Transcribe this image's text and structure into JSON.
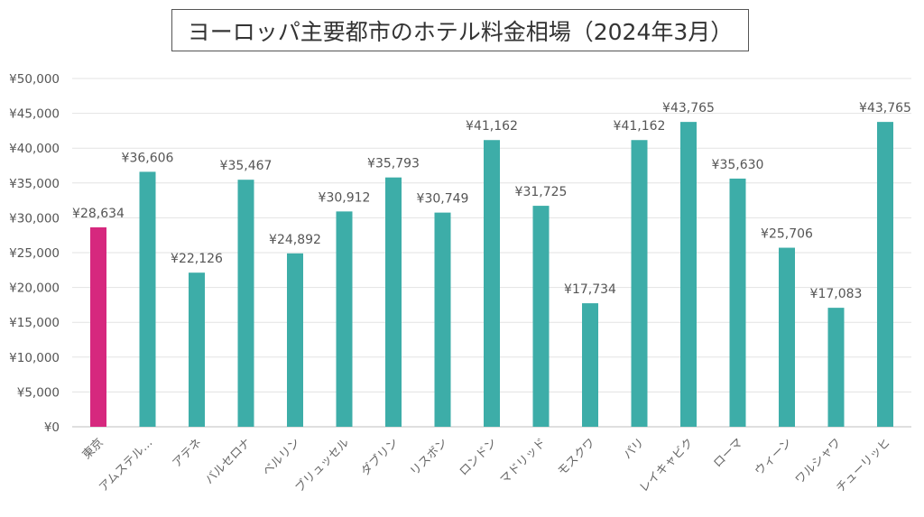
{
  "chart_data": {
    "type": "bar",
    "title": "ヨーロッパ主要都市のホテル料金相場（2024年3月）",
    "xlabel": "",
    "ylabel": "",
    "ylim": [
      0,
      50000
    ],
    "yticks": [
      "¥0",
      "¥5,000",
      "¥10,000",
      "¥15,000",
      "¥20,000",
      "¥25,000",
      "¥30,000",
      "¥35,000",
      "¥40,000",
      "¥45,000",
      "¥50,000"
    ],
    "grid": true,
    "categories": [
      "東京",
      "アムステル…",
      "アテネ",
      "バルセロナ",
      "ベルリン",
      "ブリュッセル",
      "ダブリン",
      "リスボン",
      "ロンドン",
      "マドリッド",
      "モスクワ",
      "パリ",
      "レイキャビク",
      "ローマ",
      "ウィーン",
      "ワルシャワ",
      "チューリッヒ"
    ],
    "values": [
      28634,
      36606,
      22126,
      35467,
      24892,
      30912,
      35793,
      30749,
      41162,
      31725,
      17734,
      41162,
      43765,
      35630,
      25706,
      17083,
      43765
    ],
    "data_labels": [
      "¥28,634",
      "¥36,606",
      "¥22,126",
      "¥35,467",
      "¥24,892",
      "¥30,912",
      "¥35,793",
      "¥30,749",
      "¥41,162",
      "¥31,725",
      "¥17,734",
      "¥41,162",
      "¥43,765",
      "¥35,630",
      "¥25,706",
      "¥17,083",
      "¥43,765"
    ],
    "highlight_color": "#D6287E",
    "bar_color": "#3DADA8"
  }
}
